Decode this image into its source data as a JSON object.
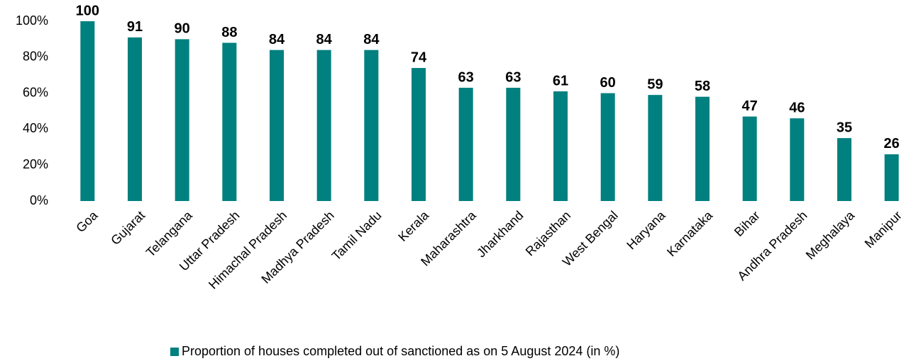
{
  "chart_data": {
    "type": "bar",
    "categories": [
      "Goa",
      "Gujarat",
      "Telangana",
      "Uttar Pradesh",
      "Himachal Pradesh",
      "Madhya Pradesh",
      "Tamil Nadu",
      "Kerala",
      "Maharashtra",
      "Jharkhand",
      "Rajasthan",
      "West Bengal",
      "Haryana",
      "Karnataka",
      "Bihar",
      "Andhra Pradesh",
      "Meghalaya",
      "Manipur"
    ],
    "series": [
      {
        "name": "Proportion of houses completed out of sanctioned as on 5 August 2024 (in %)",
        "color": "#00807f",
        "values": [
          100,
          91,
          90,
          88,
          84,
          84,
          84,
          74,
          63,
          63,
          61,
          60,
          59,
          58,
          47,
          46,
          35,
          26
        ]
      }
    ],
    "ylim": [
      0,
      100
    ],
    "yticks": [
      {
        "value": 0,
        "label": "0%"
      },
      {
        "value": 20,
        "label": "20%"
      },
      {
        "value": 40,
        "label": "40%"
      },
      {
        "value": 60,
        "label": "60%"
      },
      {
        "value": 80,
        "label": "80%"
      },
      {
        "value": 100,
        "label": "100%"
      }
    ],
    "grid": false,
    "legend": "bottom"
  }
}
